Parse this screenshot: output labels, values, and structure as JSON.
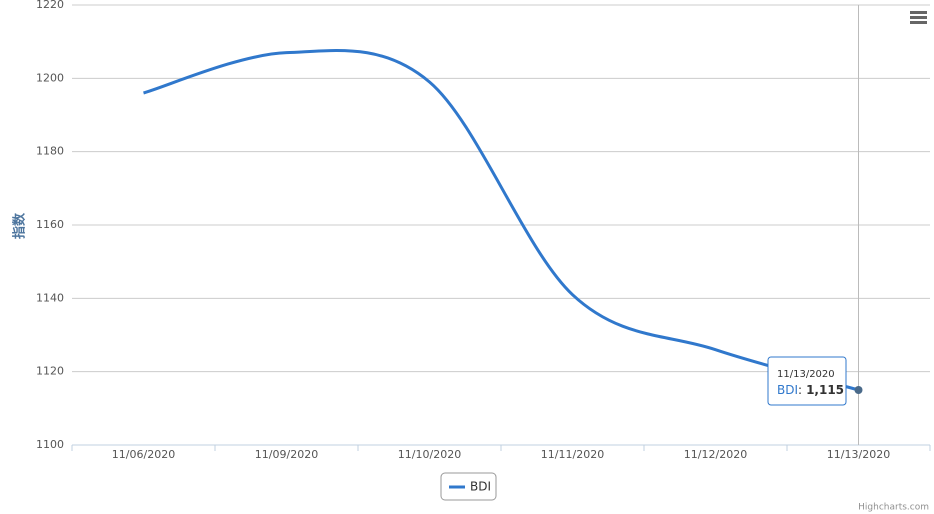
{
  "chart_data": {
    "type": "line",
    "y_axis_title": "指数",
    "categories": [
      "11/06/2020",
      "11/09/2020",
      "11/10/2020",
      "11/11/2020",
      "11/12/2020",
      "11/13/2020"
    ],
    "series": [
      {
        "name": "BDI",
        "color": "#3078cc",
        "values": [
          1196,
          1207,
          1199,
          1141,
          1126,
          1115
        ],
        "value_labels": [
          null,
          null,
          null,
          null,
          null,
          "1,115"
        ]
      }
    ],
    "ylim": [
      1100,
      1220
    ],
    "yticks": [
      1100,
      1120,
      1140,
      1160,
      1180,
      1200,
      1220
    ],
    "grid": true,
    "tooltip_separator": ":",
    "credits": "Highcharts.com"
  }
}
